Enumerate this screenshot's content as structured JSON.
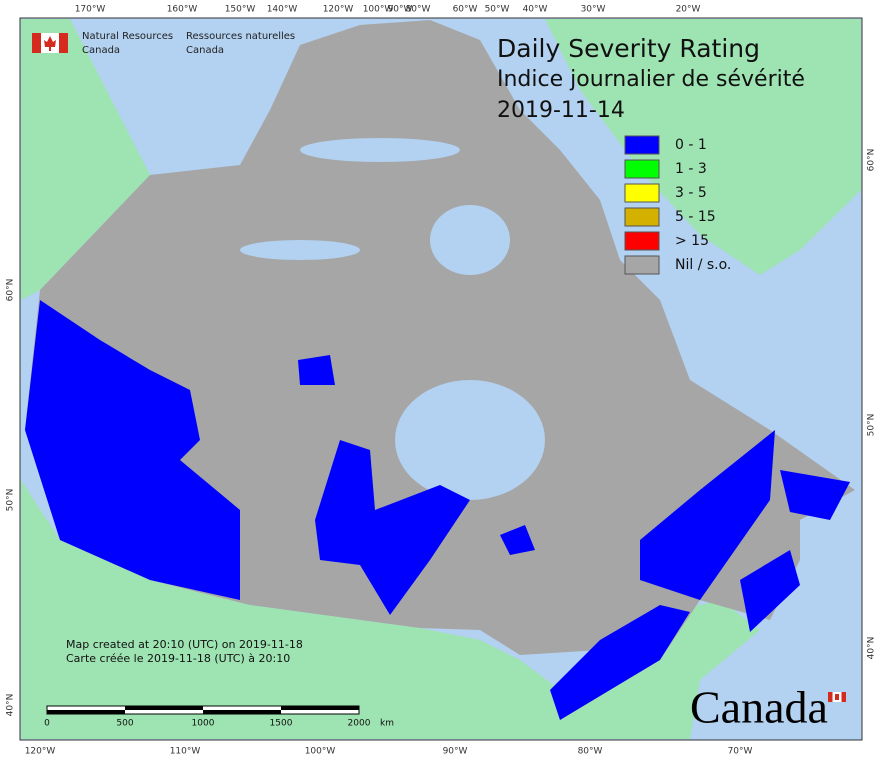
{
  "header": {
    "title_en": "Daily Severity Rating",
    "title_fr": "Indice journalier de sévérité",
    "date": "2019-11-14"
  },
  "agency": {
    "name_en": [
      "Natural Resources",
      "Canada"
    ],
    "name_fr": [
      "Ressources naturelles",
      "Canada"
    ]
  },
  "legend": [
    {
      "label": "0 - 1",
      "color": "#0000ff"
    },
    {
      "label": "1 - 3",
      "color": "#00ff00"
    },
    {
      "label": "3 - 5",
      "color": "#ffff00"
    },
    {
      "label": "5 - 15",
      "color": "#d4b000"
    },
    {
      "label": "> 15",
      "color": "#ff0000"
    },
    {
      "label": "Nil / s.o.",
      "color": "#a6a6a6"
    }
  ],
  "graticule": {
    "top": [
      "170°W",
      "160°W",
      "150°W",
      "140°W",
      "120°W",
      "100°W",
      "90°W",
      "80°W",
      "60°W",
      "50°W",
      "40°W",
      "30°W",
      "20°W"
    ],
    "bottom": [
      "120°W",
      "110°W",
      "100°W",
      "90°W",
      "80°W",
      "70°W"
    ],
    "left": [
      "60°N",
      "50°N",
      "40°N"
    ],
    "right": [
      "60°N",
      "50°N",
      "40°N"
    ]
  },
  "credits": [
    "Map created at 20:10 (UTC) on 2019-11-18",
    "Carte créée le 2019-11-18 (UTC) à 20:10"
  ],
  "scale_bar": {
    "labels": [
      "0",
      "500",
      "1000",
      "1500",
      "2000"
    ],
    "unit": "km"
  },
  "wordmark": "Canada"
}
